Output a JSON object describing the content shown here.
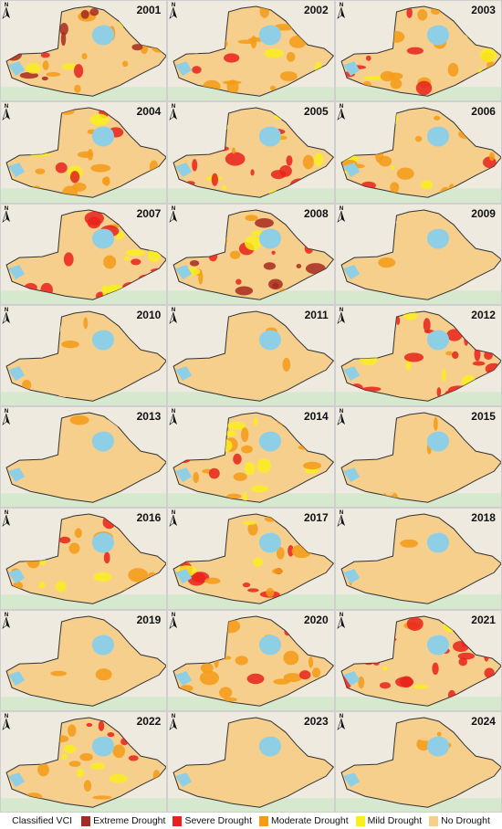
{
  "legend": {
    "title": "Classified VCI",
    "classes": [
      {
        "label": "Extreme Drought",
        "color": "#a52a1f"
      },
      {
        "label": "Severe Drought",
        "color": "#e8221b"
      },
      {
        "label": "Moderate Drought",
        "color": "#f59b16"
      },
      {
        "label": "Mild Drought",
        "color": "#f9ee1f"
      },
      {
        "label": "No Drought",
        "color": "#f7cf8d"
      }
    ]
  },
  "map_colors": {
    "background": "#eeeae0",
    "water": "#8fcfe6",
    "vegetation": "#cfe8c9",
    "boundary": "#333333"
  },
  "panels": [
    {
      "year": "2001",
      "dominant": "Extreme Drought"
    },
    {
      "year": "2002",
      "dominant": "Moderate Drought"
    },
    {
      "year": "2003",
      "dominant": "Moderate Drought"
    },
    {
      "year": "2004",
      "dominant": "Moderate Drought"
    },
    {
      "year": "2005",
      "dominant": "Severe Drought"
    },
    {
      "year": "2006",
      "dominant": "Moderate Drought"
    },
    {
      "year": "2007",
      "dominant": "Severe Drought"
    },
    {
      "year": "2008",
      "dominant": "Extreme Drought"
    },
    {
      "year": "2009",
      "dominant": "No Drought"
    },
    {
      "year": "2010",
      "dominant": "No Drought"
    },
    {
      "year": "2011",
      "dominant": "No Drought"
    },
    {
      "year": "2012",
      "dominant": "Severe Drought"
    },
    {
      "year": "2013",
      "dominant": "No Drought"
    },
    {
      "year": "2014",
      "dominant": "Moderate Drought"
    },
    {
      "year": "2015",
      "dominant": "No Drought"
    },
    {
      "year": "2016",
      "dominant": "Moderate Drought"
    },
    {
      "year": "2017",
      "dominant": "Moderate Drought"
    },
    {
      "year": "2018",
      "dominant": "No Drought"
    },
    {
      "year": "2019",
      "dominant": "No Drought"
    },
    {
      "year": "2020",
      "dominant": "Moderate Drought"
    },
    {
      "year": "2021",
      "dominant": "Severe Drought"
    },
    {
      "year": "2022",
      "dominant": "Moderate Drought"
    },
    {
      "year": "2023",
      "dominant": "No Drought"
    },
    {
      "year": "2024",
      "dominant": "No Drought"
    }
  ]
}
